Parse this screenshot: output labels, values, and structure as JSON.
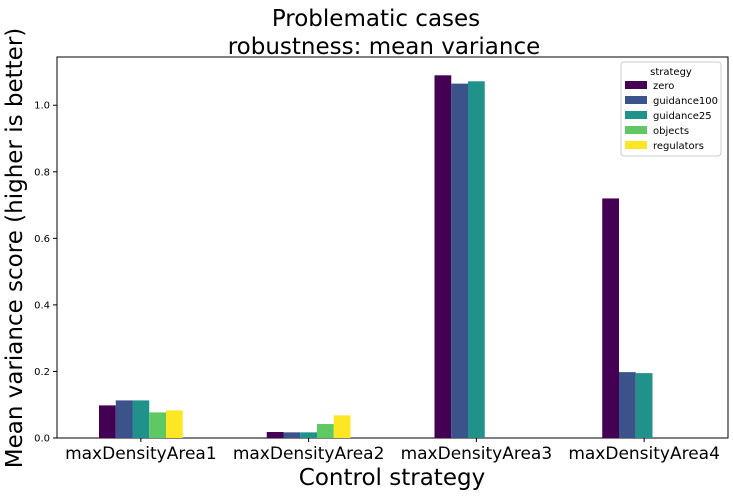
{
  "chart_data": {
    "type": "bar",
    "title": [
      "Problematic cases",
      "robustness: mean variance"
    ],
    "xlabel": "Control strategy",
    "ylabel": "Mean variance score (higher is better)",
    "categories": [
      "maxDensityArea1",
      "maxDensityArea2",
      "maxDensityArea3",
      "maxDensityArea4"
    ],
    "ylim": [
      0,
      1.145
    ],
    "yticks": [
      0.0,
      0.2,
      0.4,
      0.6,
      0.8,
      1.0
    ],
    "ytick_labels": [
      "0.0",
      "0.2",
      "0.4",
      "0.6",
      "0.8",
      "1.0"
    ],
    "grid": false,
    "legend": {
      "title": "strategy",
      "placement": "top-right"
    },
    "series": [
      {
        "name": "zero",
        "color": "#440154",
        "values": [
          0.098,
          0.018,
          1.09,
          0.72
        ]
      },
      {
        "name": "guidance100",
        "color": "#3b528b",
        "values": [
          0.113,
          0.017,
          1.065,
          0.198
        ]
      },
      {
        "name": "guidance25",
        "color": "#21918c",
        "values": [
          0.113,
          0.017,
          1.072,
          0.195
        ]
      },
      {
        "name": "objects",
        "color": "#5ec962",
        "values": [
          0.077,
          0.042,
          0.0,
          0.0
        ]
      },
      {
        "name": "regulators",
        "color": "#fde725",
        "values": [
          0.083,
          0.068,
          0.0,
          0.0
        ]
      }
    ]
  }
}
